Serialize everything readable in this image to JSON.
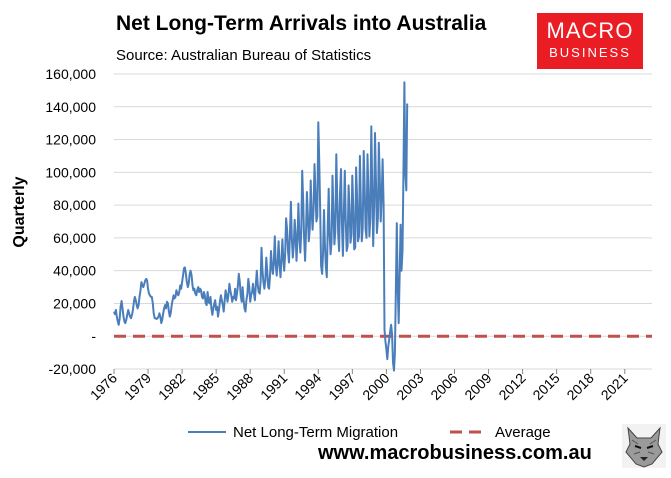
{
  "header": {
    "title": "Net Long-Term Arrivals into Australia",
    "subtitle": "Source: Australian Bureau of Statistics"
  },
  "brand": {
    "line1": "MACRO",
    "line2": "BUSINESS",
    "color": "#ea1c24"
  },
  "footer": {
    "url": "www.macrobusiness.com.au",
    "logo_icon": "wolf-head-icon"
  },
  "chart_data": {
    "type": "line",
    "title": "Net Long-Term Arrivals into Australia",
    "subtitle": "Source: Australian Bureau of Statistics",
    "ylabel": "Quarterly",
    "xlabel": "",
    "ylim": [
      -20000,
      160000
    ],
    "yticks": [
      -20000,
      0,
      20000,
      40000,
      60000,
      80000,
      100000,
      120000,
      140000,
      160000
    ],
    "ytick_labels": [
      "-20,000",
      "-",
      "20,000",
      "40,000",
      "60,000",
      "80,000",
      "100,000",
      "120,000",
      "140,000",
      "160,000"
    ],
    "xlim": [
      1976,
      2023.4
    ],
    "xticks": [
      1976,
      1979,
      1982,
      1985,
      1988,
      1991,
      1994,
      1997,
      2000,
      2003,
      2006,
      2009,
      2012,
      2015,
      2018,
      2021
    ],
    "xtick_labels": [
      "1976",
      "1979",
      "1982",
      "1985",
      "1988",
      "1991",
      "1994",
      "1997",
      "2000",
      "2003",
      "2006",
      "2009",
      "2012",
      "2015",
      "2018",
      "2021"
    ],
    "grid": "horizontal",
    "legend_position": "bottom",
    "series": [
      {
        "name": "Net Long-Term Migration",
        "color": "#4a7ebb",
        "x_start": 1976.0,
        "x_step": 0.08333,
        "values": [
          15000,
          13500,
          16000,
          12000,
          9000,
          7000,
          11000,
          18000,
          21500,
          17000,
          12000,
          9000,
          8000,
          10000,
          13000,
          16000,
          14000,
          12000,
          11000,
          13000,
          16000,
          21000,
          24000,
          22000,
          19000,
          17000,
          19000,
          24000,
          28000,
          33000,
          31000,
          30000,
          32000,
          34000,
          35000,
          34000,
          29000,
          26000,
          25000,
          24000,
          24000,
          20000,
          14000,
          11000,
          11000,
          10500,
          11000,
          12000,
          14000,
          12000,
          8000,
          10000,
          14000,
          17000,
          19000,
          17000,
          21000,
          20000,
          15000,
          12000,
          14000,
          19000,
          22000,
          25000,
          23000,
          24000,
          28000,
          26000,
          25000,
          27000,
          31000,
          29000,
          33000,
          37000,
          41500,
          42000,
          38000,
          33000,
          30000,
          32000,
          38000,
          40000,
          37000,
          31000,
          28000,
          29000,
          26000,
          25000,
          28000,
          30000,
          27000,
          29000,
          28000,
          24000,
          23000,
          27000,
          25000,
          20000,
          19000,
          27000,
          21000,
          20000,
          24000,
          17000,
          13000,
          17000,
          20000,
          22000,
          16000,
          18000,
          12000,
          16000,
          21000,
          25000,
          22000,
          19000,
          15000,
          22000,
          28000,
          25000,
          21000,
          25000,
          32000,
          28000,
          25000,
          21000,
          24000,
          23000,
          29000,
          22000,
          26000,
          31000,
          38000,
          33000,
          25000,
          21000,
          30000,
          22000,
          17000,
          15000,
          22000,
          26000,
          35000,
          30000,
          21000,
          25000,
          27000,
          32000,
          26000,
          22000,
          32000,
          40000,
          31000,
          27000,
          26000,
          33000,
          54000,
          40000,
          33000,
          29000,
          34000,
          48000,
          40000,
          30000,
          29000,
          38000,
          52000,
          42000,
          38000,
          45000,
          61000,
          44000,
          37000,
          45000,
          58000,
          44000,
          36000,
          46000,
          59000,
          47000,
          40000,
          51000,
          72000,
          65000,
          52000,
          45000,
          62000,
          82000,
          60000,
          48000,
          55000,
          71000,
          62000,
          46000,
          59000,
          81000,
          61000,
          51000,
          64000,
          101000,
          82000,
          60000,
          46000,
          63000,
          88000,
          73000,
          58000,
          66000,
          95000,
          75000,
          65000,
          78000,
          105000,
          88000,
          70000,
          73000,
          130500,
          108000,
          76000,
          43000,
          38000,
          50000,
          77000,
          56000,
          42000,
          36000,
          68000,
          90000,
          62000,
          50000,
          57000,
          98000,
          76000,
          56000,
          64000,
          111000,
          85000,
          62000,
          52000,
          87000,
          102000,
          69000,
          49000,
          74000,
          101000,
          72000,
          52000,
          55000,
          92000,
          78000,
          57000,
          62000,
          98000,
          78000,
          53000,
          54000,
          103000,
          84000,
          58000,
          61000,
          110000,
          79000,
          58000,
          66000,
          113000,
          92000,
          65000,
          60000,
          111000,
          89000,
          61000,
          72000,
          128000,
          93000,
          55000,
          79000,
          124000,
          93000,
          63000,
          72000,
          118000,
          96000,
          70000,
          85000,
          108000,
          80000,
          4000,
          -3000,
          -8000,
          -14000,
          -6000,
          -2000,
          3000,
          7000,
          1000,
          -16000,
          -21000,
          -10000,
          30000,
          69000,
          30000,
          8000,
          36000,
          68000,
          40000,
          52000,
          97000,
          155000,
          100000,
          89000,
          142000
        ]
      },
      {
        "name": "Average",
        "color": "#c0504d",
        "style": "dashed",
        "value": 0
      }
    ]
  }
}
